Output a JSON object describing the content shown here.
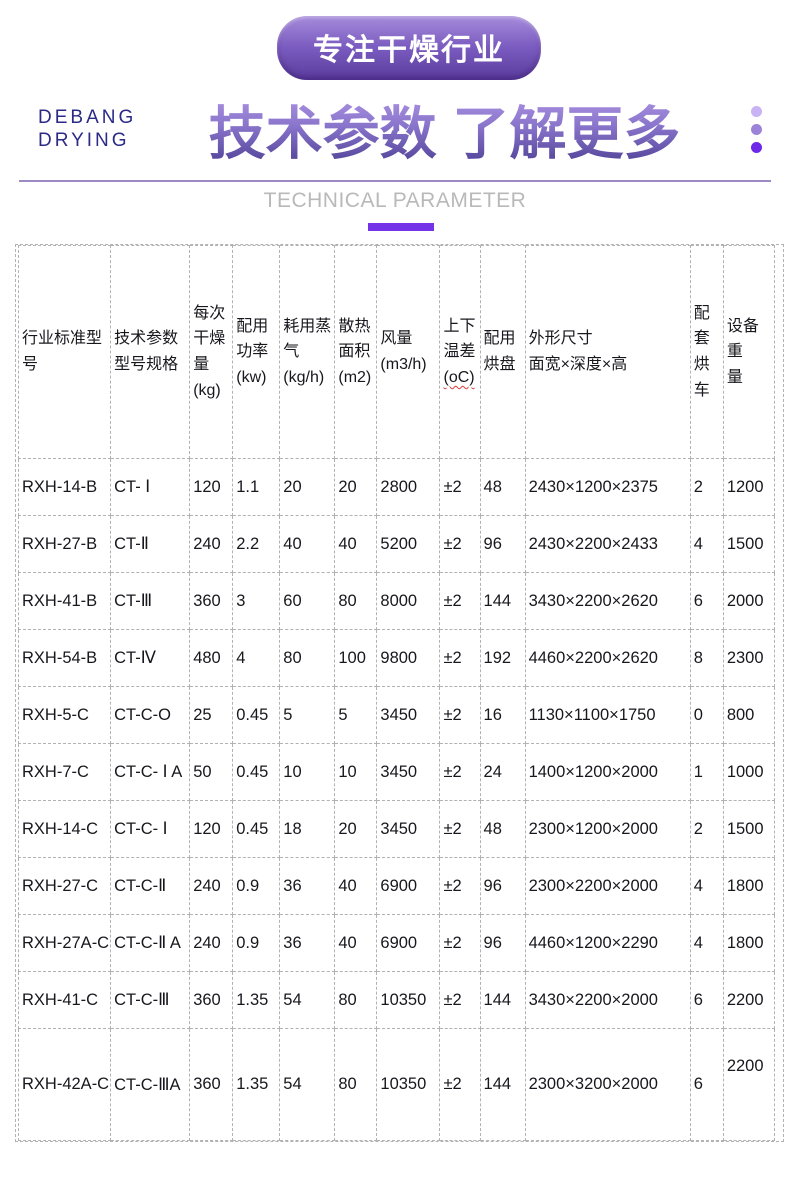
{
  "badge": {
    "label": "专注干燥行业"
  },
  "brand": {
    "line1": "DEBANG",
    "line2": "DRYING"
  },
  "header": {
    "title": "技术参数 了解更多",
    "subtitle": "TECHNICAL PARAMETER"
  },
  "colors": {
    "accent_purple": "#7533e8",
    "badge_gradient_top": "#a68bdb",
    "badge_gradient_bottom": "#5a3c9d",
    "title_gradient_top": "#b59be9",
    "title_gradient_bottom": "#493b91",
    "brand_text": "#2b2a87",
    "divider": "#9c8ac4",
    "subtitle_gray": "#b9b9b9",
    "table_border": "#b3b1b1",
    "dot_light": "#c9b3f4",
    "dot_medium": "#9c83d8",
    "dot_dark": "#6d28e8"
  },
  "table": {
    "columns": [
      {
        "label": "行业标准型\n号"
      },
      {
        "label": "技术参数\n型号规格"
      },
      {
        "label": "每次\n干燥\n量\n(kg)"
      },
      {
        "label": "配用\n功率\n(kw)"
      },
      {
        "label": "耗用蒸\n气\n(kg/h)"
      },
      {
        "label": "散热\n面积\n(m2)"
      },
      {
        "label": "风量\n(m3/h)"
      },
      {
        "label": "上下\n温差",
        "unit": "(oC)"
      },
      {
        "label": "配用\n烘盘"
      },
      {
        "label": "外形尺寸\n面宽×深度×高"
      },
      {
        "label": "配套\n烘车"
      },
      {
        "label": "设备重\n量"
      }
    ],
    "rows": [
      [
        "RXH-14-B",
        "CT- Ⅰ",
        "120",
        "1.1",
        "20",
        "20",
        "2800",
        "±2",
        "48",
        "2430×1200×2375",
        "2",
        "1200"
      ],
      [
        "RXH-27-B",
        "CT-Ⅱ",
        "240",
        "2.2",
        "40",
        "40",
        "5200",
        "±2",
        "96",
        "2430×2200×2433",
        "4",
        "1500"
      ],
      [
        "RXH-41-B",
        "CT-Ⅲ",
        "360",
        "3",
        "60",
        "80",
        "8000",
        "±2",
        "144",
        "3430×2200×2620",
        "6",
        "2000"
      ],
      [
        "RXH-54-B",
        "CT-Ⅳ",
        "480",
        "4",
        "80",
        "100",
        "9800",
        "±2",
        "192",
        "4460×2200×2620",
        "8",
        "2300"
      ],
      [
        "RXH-5-C",
        "CT-C-O",
        "25",
        "0.45",
        "5",
        "5",
        "3450",
        "±2",
        "16",
        "1130×1100×1750",
        "0",
        "800"
      ],
      [
        "RXH-7-C",
        "CT-C- Ⅰ A",
        "50",
        "0.45",
        "10",
        "10",
        "3450",
        "±2",
        "24",
        "1400×1200×2000",
        "1",
        "1000"
      ],
      [
        "RXH-14-C",
        "CT-C- Ⅰ",
        "120",
        "0.45",
        "18",
        "20",
        "3450",
        "±2",
        "48",
        "2300×1200×2000",
        "2",
        "1500"
      ],
      [
        "RXH-27-C",
        "CT-C-Ⅱ",
        "240",
        "0.9",
        "36",
        "40",
        "6900",
        "±2",
        "96",
        "2300×2200×2000",
        "4",
        "1800"
      ],
      [
        "RXH-27A-C",
        "CT-C-Ⅱ A",
        "240",
        "0.9",
        "36",
        "40",
        "6900",
        "±2",
        "96",
        "4460×1200×2290",
        "4",
        "1800"
      ],
      [
        "RXH-41-C",
        "CT-C-Ⅲ",
        "360",
        "1.35",
        "54",
        "80",
        "10350",
        "±2",
        "144",
        "3430×2200×2000",
        "6",
        "2200"
      ],
      [
        "RXH-42A-C",
        "CT-C-ⅢA",
        "360",
        "1.35",
        "54",
        "80",
        "10350",
        "±2",
        "144",
        "2300×3200×2000",
        "6",
        "2200"
      ]
    ]
  }
}
